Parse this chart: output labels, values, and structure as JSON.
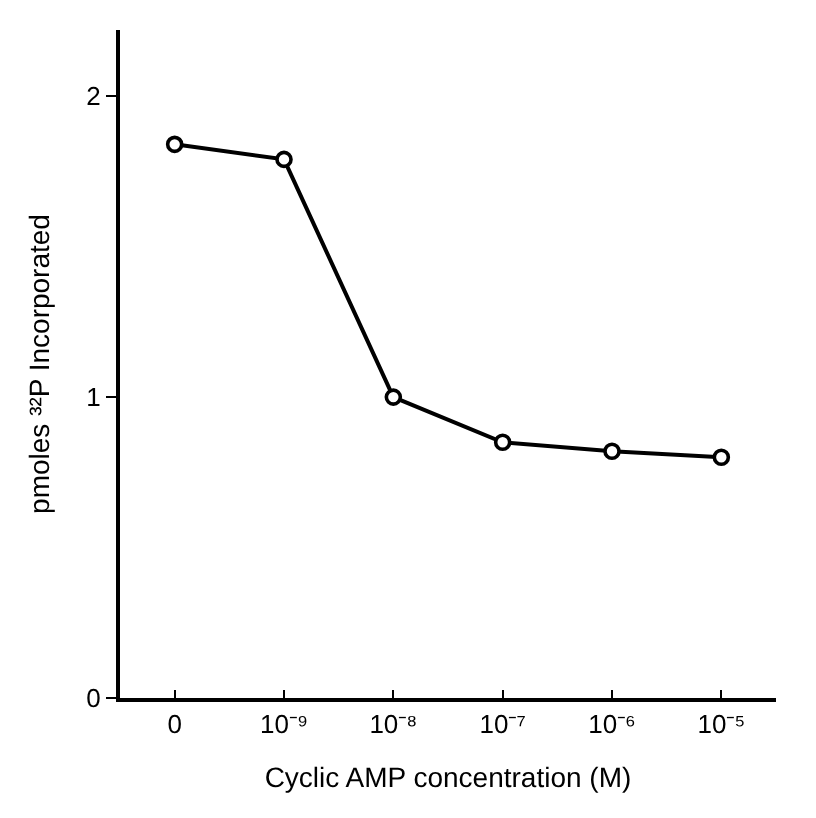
{
  "chart_data": {
    "type": "line",
    "xlabel": "Cyclic AMP concentration (M)",
    "ylabel": "pmoles ³²P Incorporated",
    "categories": [
      "0",
      "10⁻⁹",
      "10⁻⁸",
      "10⁻⁷",
      "10⁻⁶",
      "10⁻⁵"
    ],
    "series": [
      {
        "color": "#000000",
        "values": [
          1.84,
          1.79,
          1.0,
          0.85,
          0.82,
          0.8
        ]
      }
    ],
    "ylim": [
      0,
      2.22
    ],
    "yticks": [
      0,
      1,
      2
    ],
    "marker": "circle",
    "line_style": "solid"
  }
}
